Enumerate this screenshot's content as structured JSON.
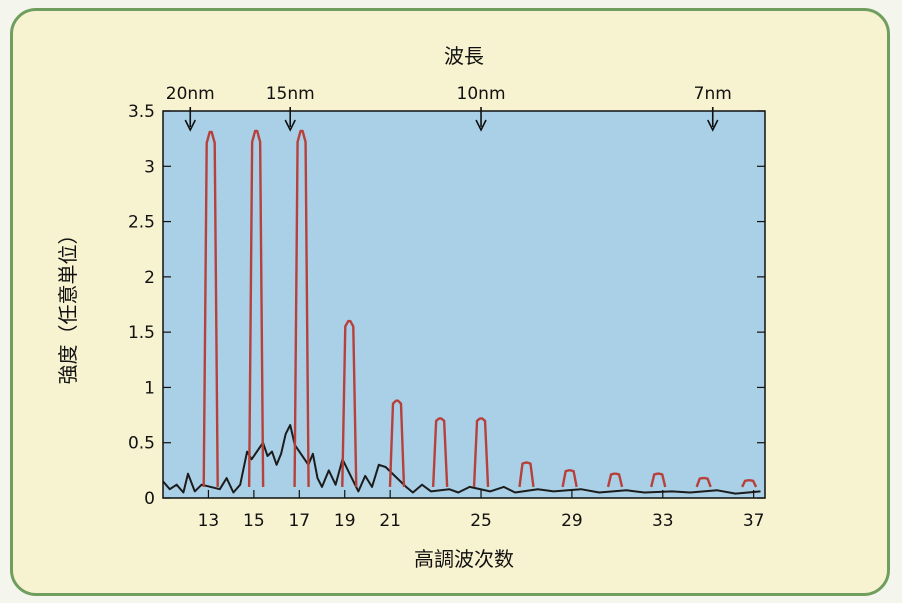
{
  "chart_data": {
    "type": "line",
    "top_axis_title": "波長",
    "xlabel": "高調波次数",
    "ylabel": "強度（任意単位）",
    "ylim": [
      0,
      3.5
    ],
    "xlim": [
      11,
      37.5
    ],
    "y_ticks": [
      "0",
      "0.5",
      "1",
      "1.5",
      "2",
      "2.5",
      "3",
      "3.5"
    ],
    "x_ticks": [
      {
        "label": "13",
        "x": 13
      },
      {
        "label": "15",
        "x": 15
      },
      {
        "label": "17",
        "x": 17
      },
      {
        "label": "19",
        "x": 19
      },
      {
        "label": "21",
        "x": 21
      },
      {
        "label": "25",
        "x": 25
      },
      {
        "label": "29",
        "x": 29
      },
      {
        "label": "33",
        "x": 33
      },
      {
        "label": "37",
        "x": 37
      }
    ],
    "wavelength_markers": [
      {
        "label": "20nm",
        "x": 12.2
      },
      {
        "label": "15nm",
        "x": 16.6
      },
      {
        "label": "10nm",
        "x": 25.0
      },
      {
        "label": "7nm",
        "x": 35.2
      }
    ],
    "colors": {
      "background": "#a9d0e6",
      "harmonic_peaks": "#b8403a",
      "baseline": "#1c1c1c"
    },
    "harmonic_peaks": [
      {
        "order": 13,
        "x": 13.1,
        "intensity": 3.31
      },
      {
        "order": 15,
        "x": 15.1,
        "intensity": 3.32
      },
      {
        "order": 17,
        "x": 17.1,
        "intensity": 3.32
      },
      {
        "order": 19,
        "x": 19.2,
        "intensity": 1.6
      },
      {
        "order": 21,
        "x": 21.3,
        "intensity": 0.88
      },
      {
        "order": 23,
        "x": 23.2,
        "intensity": 0.72
      },
      {
        "order": 25,
        "x": 25.0,
        "intensity": 0.72
      },
      {
        "order": 27,
        "x": 27.0,
        "intensity": 0.32
      },
      {
        "order": 29,
        "x": 28.9,
        "intensity": 0.25
      },
      {
        "order": 31,
        "x": 30.9,
        "intensity": 0.22
      },
      {
        "order": 33,
        "x": 32.8,
        "intensity": 0.22
      },
      {
        "order": 35,
        "x": 34.8,
        "intensity": 0.18
      },
      {
        "order": 37,
        "x": 36.8,
        "intensity": 0.16
      }
    ],
    "baseline_series": [
      [
        11.0,
        0.15
      ],
      [
        11.3,
        0.08
      ],
      [
        11.6,
        0.12
      ],
      [
        11.9,
        0.05
      ],
      [
        12.1,
        0.22
      ],
      [
        12.4,
        0.06
      ],
      [
        12.7,
        0.12
      ],
      [
        13.5,
        0.08
      ],
      [
        13.8,
        0.18
      ],
      [
        14.1,
        0.05
      ],
      [
        14.4,
        0.12
      ],
      [
        14.7,
        0.42
      ],
      [
        14.9,
        0.35
      ],
      [
        15.4,
        0.5
      ],
      [
        15.6,
        0.38
      ],
      [
        15.8,
        0.42
      ],
      [
        16.0,
        0.3
      ],
      [
        16.2,
        0.4
      ],
      [
        16.4,
        0.58
      ],
      [
        16.6,
        0.66
      ],
      [
        16.8,
        0.48
      ],
      [
        17.4,
        0.3
      ],
      [
        17.6,
        0.4
      ],
      [
        17.8,
        0.18
      ],
      [
        18.0,
        0.1
      ],
      [
        18.3,
        0.25
      ],
      [
        18.6,
        0.12
      ],
      [
        18.9,
        0.35
      ],
      [
        19.6,
        0.06
      ],
      [
        19.9,
        0.2
      ],
      [
        20.2,
        0.1
      ],
      [
        20.5,
        0.3
      ],
      [
        20.8,
        0.28
      ],
      [
        21.7,
        0.1
      ],
      [
        22.0,
        0.05
      ],
      [
        22.4,
        0.12
      ],
      [
        22.8,
        0.06
      ],
      [
        23.6,
        0.08
      ],
      [
        24.0,
        0.05
      ],
      [
        24.5,
        0.1
      ],
      [
        25.4,
        0.06
      ],
      [
        26.0,
        0.1
      ],
      [
        26.5,
        0.05
      ],
      [
        27.5,
        0.08
      ],
      [
        28.2,
        0.06
      ],
      [
        29.4,
        0.08
      ],
      [
        30.2,
        0.05
      ],
      [
        31.4,
        0.07
      ],
      [
        32.2,
        0.05
      ],
      [
        33.4,
        0.06
      ],
      [
        34.2,
        0.05
      ],
      [
        35.4,
        0.07
      ],
      [
        36.2,
        0.04
      ],
      [
        37.3,
        0.06
      ]
    ]
  }
}
